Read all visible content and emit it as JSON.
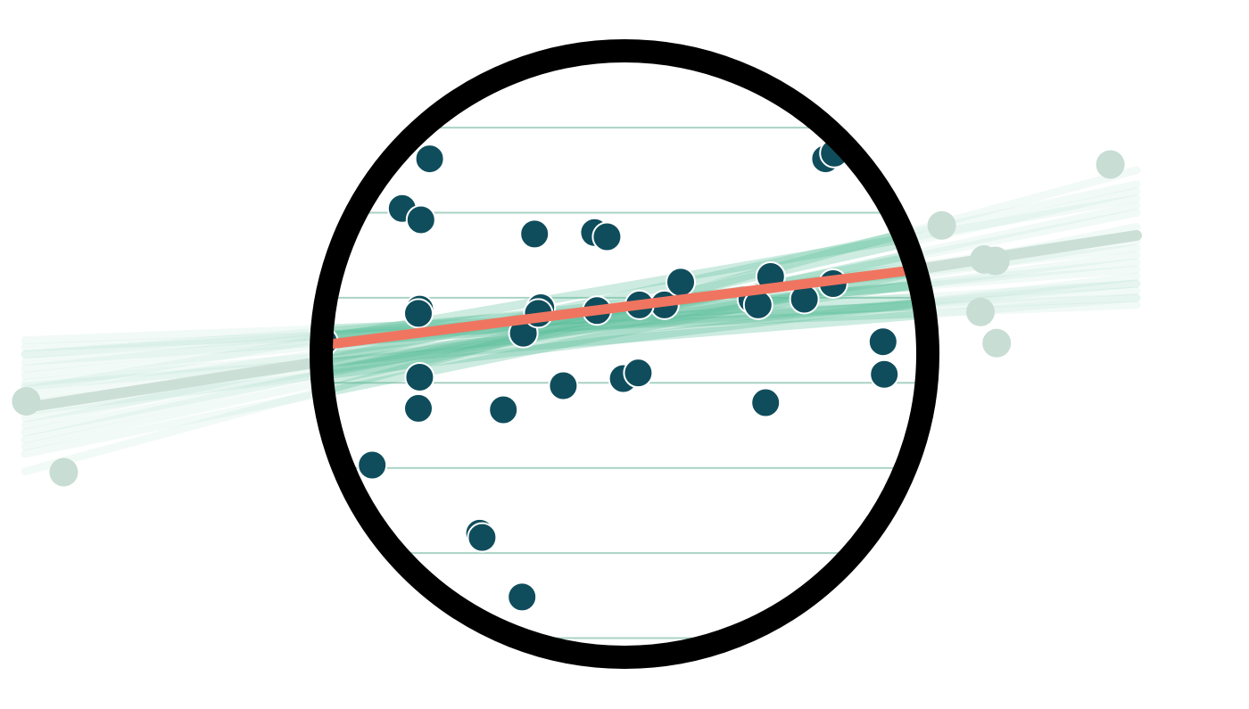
{
  "chart_data": {
    "type": "scatter",
    "title": "",
    "xlabel": "",
    "ylabel": "",
    "xlim": [
      0,
      100
    ],
    "ylim": [
      0,
      100
    ],
    "grid": true,
    "grid_y": [
      10,
      22,
      34,
      46,
      58,
      70,
      82,
      94
    ],
    "colors": {
      "background": "#ffffff",
      "point_inside": "#0f4d5c",
      "point_outside": "#c8ddd4",
      "fit_line": "#f07560",
      "bootstrap_lines": "#5cbf9c",
      "grid": "#a9d2c4",
      "circle_border": "#000000"
    },
    "points_inside": [
      {
        "x": 35.8,
        "y": 89.6
      },
      {
        "x": 34.4,
        "y": 77.6
      },
      {
        "x": 32.2,
        "y": 70.6
      },
      {
        "x": 33.7,
        "y": 69.0
      },
      {
        "x": 24.2,
        "y": 62.8
      },
      {
        "x": 24.9,
        "y": 63.8
      },
      {
        "x": 25.6,
        "y": 63.4
      },
      {
        "x": 22.7,
        "y": 56.2
      },
      {
        "x": 33.6,
        "y": 56.4
      },
      {
        "x": 33.5,
        "y": 55.8
      },
      {
        "x": 25.9,
        "y": 51.8
      },
      {
        "x": 33.6,
        "y": 46.8
      },
      {
        "x": 33.5,
        "y": 42.4
      },
      {
        "x": 21.5,
        "y": 41.8
      },
      {
        "x": 21.6,
        "y": 40.0
      },
      {
        "x": 29.8,
        "y": 34.4
      },
      {
        "x": 21.2,
        "y": 25.4
      },
      {
        "x": 38.4,
        "y": 24.8
      },
      {
        "x": 38.6,
        "y": 24.2
      },
      {
        "x": 41.8,
        "y": 15.8
      },
      {
        "x": 42.8,
        "y": 67.0
      },
      {
        "x": 47.6,
        "y": 67.2
      },
      {
        "x": 48.6,
        "y": 66.6
      },
      {
        "x": 41.9,
        "y": 53.0
      },
      {
        "x": 43.3,
        "y": 56.6
      },
      {
        "x": 43.1,
        "y": 55.8
      },
      {
        "x": 47.8,
        "y": 56.2
      },
      {
        "x": 53.2,
        "y": 57.0
      },
      {
        "x": 54.5,
        "y": 60.2
      },
      {
        "x": 51.2,
        "y": 57.0
      },
      {
        "x": 60.2,
        "y": 57.8
      },
      {
        "x": 60.7,
        "y": 57.0
      },
      {
        "x": 61.7,
        "y": 61.0
      },
      {
        "x": 64.4,
        "y": 57.8
      },
      {
        "x": 66.7,
        "y": 60.0
      },
      {
        "x": 49.9,
        "y": 46.6
      },
      {
        "x": 51.1,
        "y": 47.4
      },
      {
        "x": 45.1,
        "y": 45.6
      },
      {
        "x": 40.3,
        "y": 42.2
      },
      {
        "x": 61.3,
        "y": 43.2
      },
      {
        "x": 70.7,
        "y": 51.8
      },
      {
        "x": 70.8,
        "y": 47.2
      },
      {
        "x": 66.1,
        "y": 77.6
      },
      {
        "x": 66.8,
        "y": 78.4
      }
    ],
    "points_outside": [
      {
        "x": 2.1,
        "y": 43.4
      },
      {
        "x": 5.1,
        "y": 33.4
      },
      {
        "x": 75.4,
        "y": 68.2
      },
      {
        "x": 78.8,
        "y": 63.4
      },
      {
        "x": 79.7,
        "y": 63.2
      },
      {
        "x": 78.5,
        "y": 56.0
      },
      {
        "x": 79.8,
        "y": 51.6
      },
      {
        "x": 88.9,
        "y": 76.8
      }
    ],
    "fit_line": {
      "x": [
        11.0,
        74.4
      ],
      "y": [
        48.0,
        62.2
      ]
    },
    "outside_fit_line": {
      "x": [
        2.0,
        91.0
      ],
      "y": [
        42.5,
        66.8
      ]
    },
    "bootstrap_lines": [
      {
        "x": [
          2,
          91
        ],
        "y": [
          45.0,
          72.0
        ]
      },
      {
        "x": [
          2,
          91
        ],
        "y": [
          49.0,
          59.0
        ]
      },
      {
        "x": [
          2,
          91
        ],
        "y": [
          38.0,
          73.0
        ]
      },
      {
        "x": [
          2,
          91
        ],
        "y": [
          52.0,
          58.0
        ]
      },
      {
        "x": [
          2,
          91
        ],
        "y": [
          41.0,
          66.0
        ]
      },
      {
        "x": [
          2,
          91
        ],
        "y": [
          50.0,
          62.0
        ]
      },
      {
        "x": [
          2,
          91
        ],
        "y": [
          36.0,
          68.0
        ]
      },
      {
        "x": [
          2,
          91
        ],
        "y": [
          46.0,
          60.0
        ]
      },
      {
        "x": [
          2,
          91
        ],
        "y": [
          43.0,
          64.0
        ]
      },
      {
        "x": [
          2,
          91
        ],
        "y": [
          39.0,
          70.0
        ]
      },
      {
        "x": [
          2,
          91
        ],
        "y": [
          51.0,
          57.0
        ]
      },
      {
        "x": [
          2,
          91
        ],
        "y": [
          44.0,
          67.0
        ]
      },
      {
        "x": [
          2,
          91
        ],
        "y": [
          47.0,
          63.0
        ]
      },
      {
        "x": [
          2,
          91
        ],
        "y": [
          33.5,
          76.0
        ]
      },
      {
        "x": [
          2,
          91
        ],
        "y": [
          48.0,
          65.0
        ]
      },
      {
        "x": [
          2,
          91
        ],
        "y": [
          42.0,
          61.0
        ]
      },
      {
        "x": [
          2,
          91
        ],
        "y": [
          37.0,
          71.0
        ]
      },
      {
        "x": [
          2,
          91
        ],
        "y": [
          50.0,
          60.0
        ]
      },
      {
        "x": [
          2,
          91
        ],
        "y": [
          45.5,
          58.0
        ]
      },
      {
        "x": [
          2,
          91
        ],
        "y": [
          40.0,
          74.0
        ]
      }
    ]
  }
}
